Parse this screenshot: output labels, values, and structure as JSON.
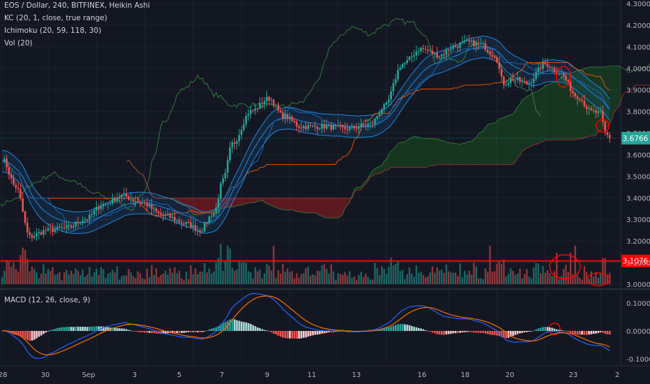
{
  "header": {
    "title": "EOS / Dollar, 240, BITFINEX, Heikin Ashi",
    "indicators": [
      "KC (20, 1, close, true range)",
      "Ichimoku (20, 59, 118, 30)",
      "Vol (20)"
    ]
  },
  "macd_title": "MACD (12, 26, close, 9)",
  "colors": {
    "background": "#131722",
    "bull": "#26a69a",
    "bear": "#ef5350",
    "price_label": "#26a69a",
    "hline": "#ff0000",
    "annotation": "#ff0000",
    "kc": "#1e88e5",
    "macd_line": "#2962ff",
    "signal_line": "#ff6d00",
    "cloud_bull": "#1b5e20",
    "cloud_bear": "#b71c1c"
  },
  "chart_data": [
    {
      "type": "candlestick",
      "style": "heikin-ashi",
      "x_ticks": [
        "28",
        "30",
        "Sep",
        "3",
        "5",
        "7",
        "9",
        "11",
        "13",
        "16",
        "18",
        "20",
        "23",
        "2"
      ],
      "y_ticks": [
        "4.3000",
        "4.2000",
        "4.1000",
        "4.0000",
        "3.9000",
        "3.8000",
        "3.7000",
        "3.6000",
        "3.5000",
        "3.4000",
        "3.3000",
        "3.2000",
        "3.1000",
        "3.0000"
      ],
      "ylim": [
        3.0,
        4.3
      ],
      "close_keypoints": [
        [
          0,
          3.58
        ],
        [
          6,
          3.45
        ],
        [
          12,
          3.22
        ],
        [
          20,
          3.25
        ],
        [
          28,
          3.26
        ],
        [
          36,
          3.3
        ],
        [
          44,
          3.37
        ],
        [
          52,
          3.41
        ],
        [
          60,
          3.38
        ],
        [
          70,
          3.32
        ],
        [
          80,
          3.28
        ],
        [
          86,
          3.25
        ],
        [
          92,
          3.33
        ],
        [
          96,
          3.48
        ],
        [
          100,
          3.65
        ],
        [
          108,
          3.8
        ],
        [
          116,
          3.86
        ],
        [
          122,
          3.78
        ],
        [
          130,
          3.73
        ],
        [
          140,
          3.73
        ],
        [
          150,
          3.72
        ],
        [
          160,
          3.74
        ],
        [
          166,
          3.82
        ],
        [
          174,
          4.02
        ],
        [
          182,
          4.09
        ],
        [
          190,
          4.06
        ],
        [
          196,
          4.1
        ],
        [
          202,
          4.12
        ],
        [
          208,
          4.11
        ],
        [
          214,
          4.06
        ],
        [
          218,
          3.93
        ],
        [
          222,
          3.95
        ],
        [
          228,
          3.93
        ],
        [
          236,
          4.02
        ],
        [
          242,
          3.98
        ],
        [
          250,
          3.87
        ],
        [
          256,
          3.8
        ],
        [
          260,
          3.79
        ],
        [
          262,
          3.7
        ],
        [
          264,
          3.68
        ]
      ],
      "last_price": "3.6766"
    },
    {
      "type": "bar",
      "name": "Vol (20)"
    },
    {
      "type": "line",
      "name": "MACD",
      "y_ticks": [
        "0.1000",
        "0.0000",
        "-0.1000"
      ],
      "ylim": [
        -0.12,
        0.14
      ]
    }
  ],
  "horizontal_line": {
    "price": 3.1076,
    "label": "3.1076"
  }
}
